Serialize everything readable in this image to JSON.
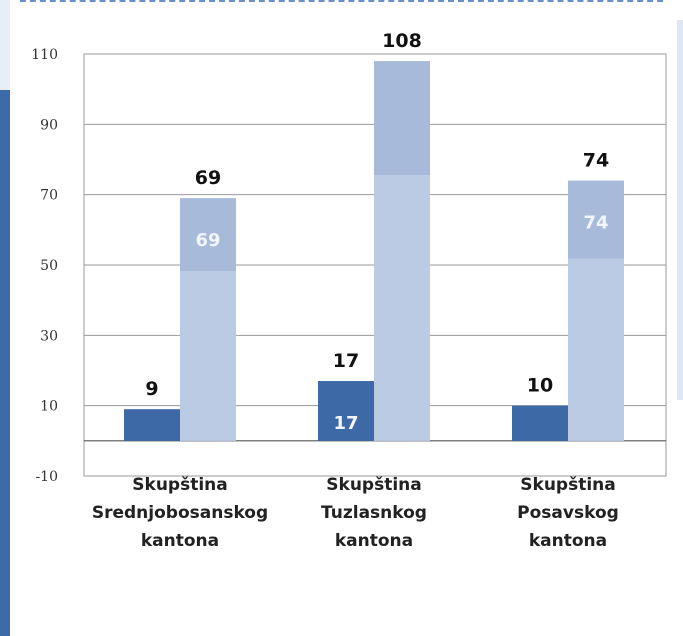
{
  "chart_data": {
    "type": "bar",
    "categories": [
      [
        "Skupština",
        "Srednjobosanskog",
        "kantona"
      ],
      [
        "Skupština",
        "Tuzlasnkog",
        "kantona"
      ],
      [
        "Skupština",
        "Posavskog",
        "kantona"
      ]
    ],
    "series": [
      {
        "values": [
          9,
          17,
          10
        ],
        "color": "#3d69a6",
        "inner_labels": [
          "",
          "17",
          ""
        ]
      },
      {
        "values": [
          69,
          108,
          74
        ],
        "color": "#a7bad9",
        "inner_labels": [
          "69",
          "",
          "74"
        ]
      }
    ],
    "ylim": [
      -10,
      110
    ],
    "yticks": [
      "110",
      "90",
      "70",
      "50",
      "30",
      "10",
      "-10"
    ],
    "ytick_values": [
      110,
      90,
      70,
      50,
      30,
      10,
      -10
    ],
    "grid": true,
    "legend": "none"
  }
}
